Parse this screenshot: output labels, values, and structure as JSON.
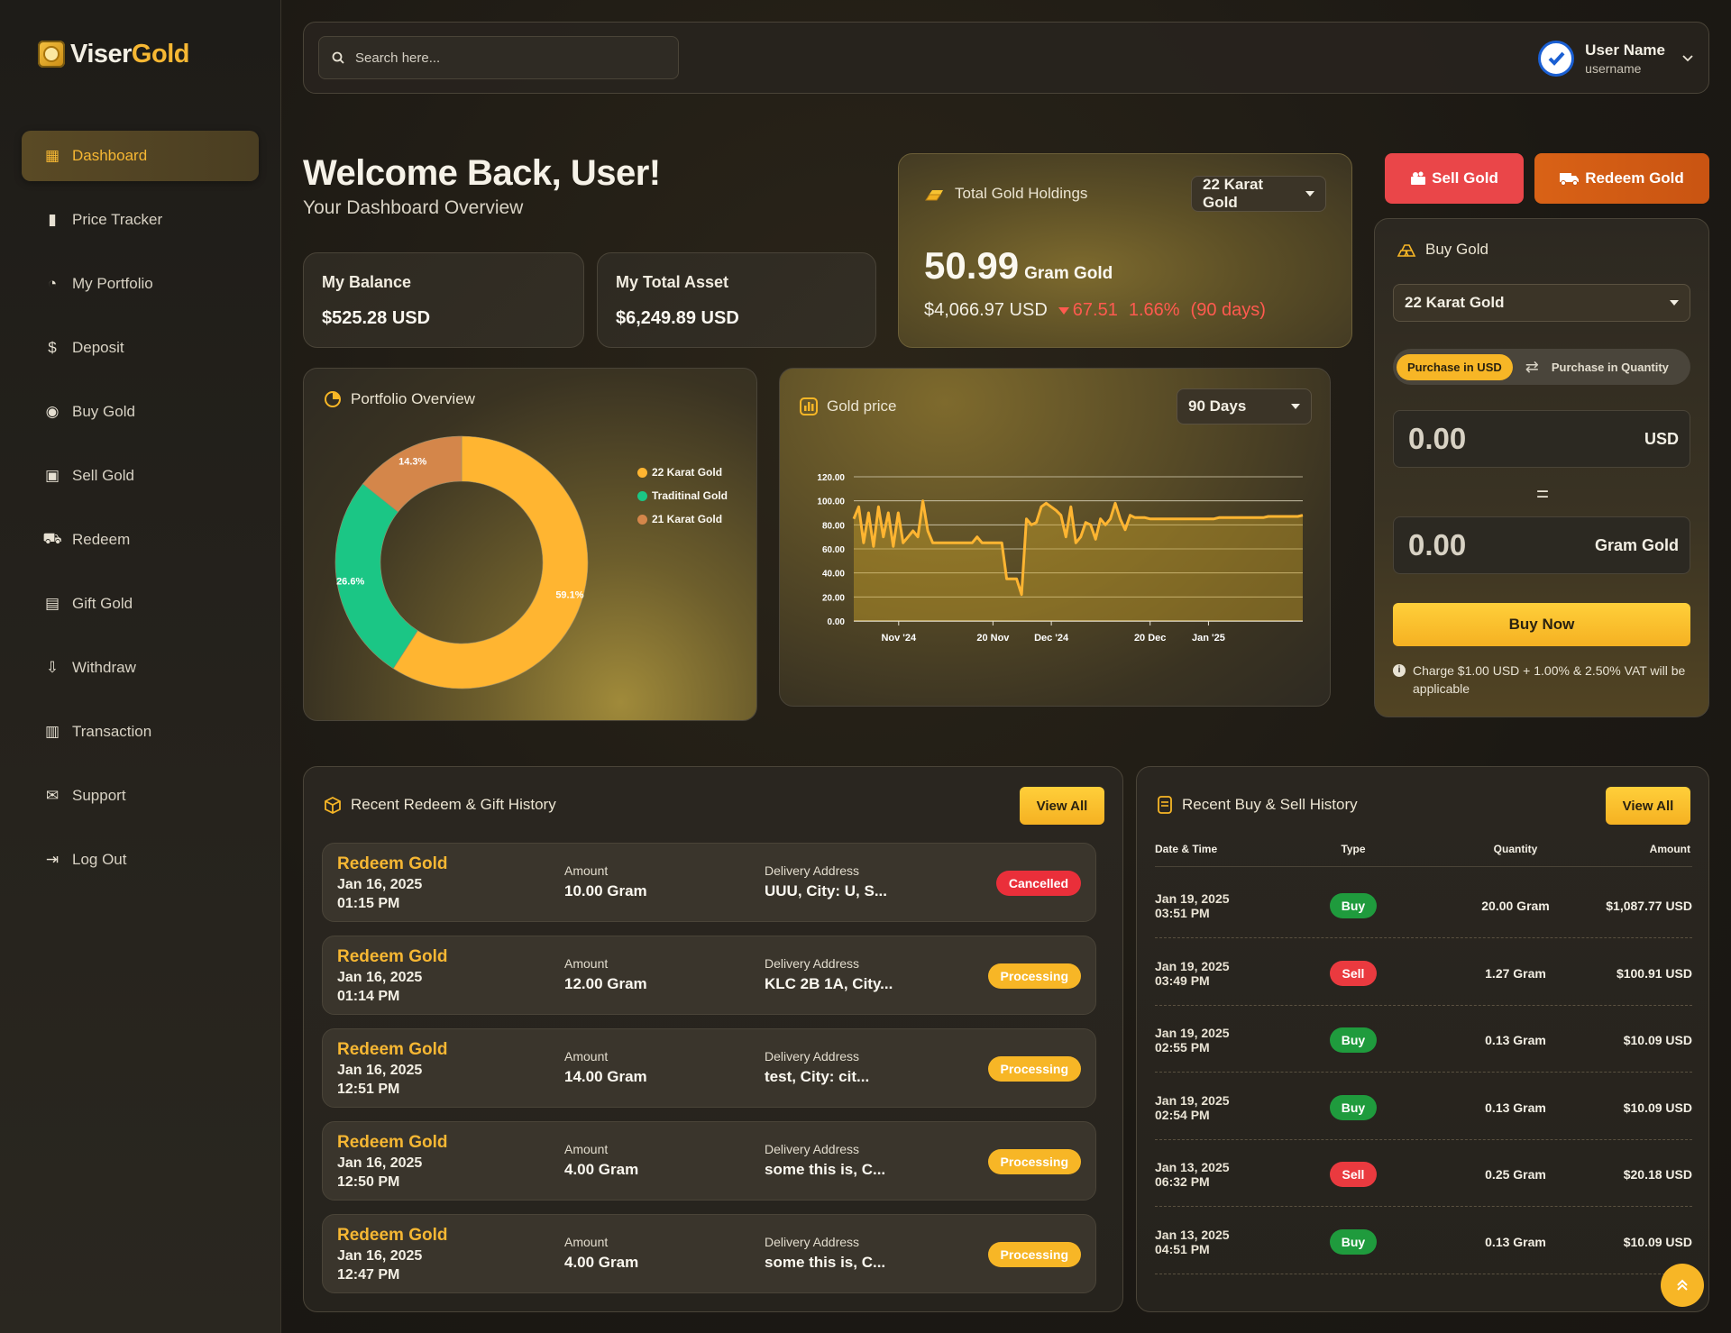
{
  "brand": {
    "part1": "Viser",
    "part2": "Gold"
  },
  "sidebar": {
    "items": [
      {
        "label": "Dashboard",
        "icon": "dashboard-icon",
        "active": true
      },
      {
        "label": "Price Tracker",
        "icon": "bar-chart-icon"
      },
      {
        "label": "My Portfolio",
        "icon": "pie-chart-icon"
      },
      {
        "label": "Deposit",
        "icon": "money-bag-icon"
      },
      {
        "label": "Buy Gold",
        "icon": "hand-coin-icon"
      },
      {
        "label": "Sell Gold",
        "icon": "sell-icon"
      },
      {
        "label": "Redeem",
        "icon": "truck-icon"
      },
      {
        "label": "Gift Gold",
        "icon": "gift-icon"
      },
      {
        "label": "Withdraw",
        "icon": "withdraw-icon"
      },
      {
        "label": "Transaction",
        "icon": "clipboard-icon"
      },
      {
        "label": "Support",
        "icon": "envelope-icon"
      },
      {
        "label": "Log Out",
        "icon": "logout-icon"
      }
    ]
  },
  "topbar": {
    "search_placeholder": "Search here...",
    "user_name": "User Name",
    "user_handle": "username"
  },
  "welcome": {
    "title": "Welcome Back, User!",
    "subtitle": "Your Dashboard Overview"
  },
  "stats": {
    "balance_label": "My Balance",
    "balance_value": "$525.28 USD",
    "asset_label": "My Total Asset",
    "asset_value": "$6,249.89 USD"
  },
  "holdings": {
    "title": "Total Gold Holdings",
    "karat": "22 Karat Gold",
    "amount": "50.99",
    "unit": "Gram Gold",
    "usd": "$4,066.97 USD",
    "change": "67.51",
    "change_pct": "1.66%",
    "period": "(90 days)"
  },
  "actions": {
    "sell": "Sell Gold",
    "redeem": "Redeem Gold"
  },
  "buy_gold": {
    "title": "Buy Gold",
    "karat": "22 Karat Gold",
    "opt_usd": "Purchase in USD",
    "opt_qty": "Purchase in Quantity",
    "usd_placeholder": "0.00",
    "usd_label": "USD",
    "gram_placeholder": "0.00",
    "gram_label": "Gram Gold",
    "equals": "=",
    "buy_now": "Buy Now",
    "note": "Charge $1.00 USD + 1.00% & 2.50% VAT will be applicable"
  },
  "portfolio": {
    "title": "Portfolio Overview",
    "legend": [
      "22 Karat Gold",
      "Traditinal Gold",
      "21 Karat Gold"
    ]
  },
  "gold_price": {
    "title": "Gold price",
    "range": "90 Days"
  },
  "colors": {
    "accent": "#f6b733",
    "green": "#1bc685",
    "copper": "#d4864a",
    "red": "#ea4649"
  },
  "chart_data": [
    {
      "type": "pie",
      "categories": [
        "22 Karat Gold",
        "Traditinal Gold",
        "21 Karat Gold"
      ],
      "values": [
        59.1,
        26.6,
        14.3
      ],
      "labels": [
        "59.1%",
        "26.6%",
        "14.3%"
      ],
      "colors": [
        "#ffb531",
        "#1bc685",
        "#d4864a"
      ],
      "legend": "right"
    },
    {
      "type": "area",
      "title": "",
      "ylim": [
        0,
        120
      ],
      "yticks": [
        "0.00",
        "20.00",
        "40.00",
        "60.00",
        "80.00",
        "100.00",
        "120.00"
      ],
      "xticks": [
        "Nov '24",
        "20 Nov",
        "Dec '24",
        "20 Dec",
        "Jan '25"
      ],
      "grid": true,
      "series": [
        {
          "values": [
            85,
            95,
            65,
            90,
            62,
            95,
            70,
            90,
            62,
            90,
            65,
            70,
            75,
            70,
            100,
            75,
            65,
            65,
            65,
            65,
            65,
            65,
            65,
            65,
            65,
            70,
            65,
            65,
            65,
            65,
            65,
            35,
            35,
            35,
            22,
            85,
            80,
            82,
            95,
            98,
            95,
            92,
            88,
            70,
            95,
            65,
            70,
            82,
            80,
            68,
            85,
            80,
            85,
            98,
            85,
            76,
            88,
            86,
            86,
            86,
            85,
            85,
            85,
            85,
            85,
            85,
            85,
            85,
            85,
            85,
            85,
            85,
            85,
            85,
            86,
            86,
            86,
            86,
            86,
            86,
            86,
            86,
            86,
            86,
            87,
            87,
            87,
            87,
            87,
            87,
            87,
            88
          ]
        }
      ]
    }
  ],
  "redeem_history": {
    "title": "Recent Redeem & Gift History",
    "view_all": "View All",
    "amount_label": "Amount",
    "address_label": "Delivery Address",
    "rows": [
      {
        "title": "Redeem Gold",
        "date": "Jan 16, 2025",
        "time": "01:15 PM",
        "amount": "10.00 Gram",
        "address": "UUU, City: U, S...",
        "status": "Cancelled",
        "status_kind": "cancel"
      },
      {
        "title": "Redeem Gold",
        "date": "Jan 16, 2025",
        "time": "01:14 PM",
        "amount": "12.00 Gram",
        "address": "KLC 2B 1A, City...",
        "status": "Processing",
        "status_kind": "proc"
      },
      {
        "title": "Redeem Gold",
        "date": "Jan 16, 2025",
        "time": "12:51 PM",
        "amount": "14.00 Gram",
        "address": "test, City: cit...",
        "status": "Processing",
        "status_kind": "proc"
      },
      {
        "title": "Redeem Gold",
        "date": "Jan 16, 2025",
        "time": "12:50 PM",
        "amount": "4.00 Gram",
        "address": "some this is, C...",
        "status": "Processing",
        "status_kind": "proc"
      },
      {
        "title": "Redeem Gold",
        "date": "Jan 16, 2025",
        "time": "12:47 PM",
        "amount": "4.00 Gram",
        "address": "some this is, C...",
        "status": "Processing",
        "status_kind": "proc"
      }
    ]
  },
  "trade_history": {
    "title": "Recent Buy & Sell History",
    "view_all": "View All",
    "headers": [
      "Date & Time",
      "Type",
      "Quantity",
      "Amount"
    ],
    "rows": [
      {
        "date": "Jan 19, 2025",
        "time": "03:51 PM",
        "type": "Buy",
        "qty": "20.00 Gram",
        "amount": "$1,087.77 USD"
      },
      {
        "date": "Jan 19, 2025",
        "time": "03:49 PM",
        "type": "Sell",
        "qty": "1.27 Gram",
        "amount": "$100.91 USD"
      },
      {
        "date": "Jan 19, 2025",
        "time": "02:55 PM",
        "type": "Buy",
        "qty": "0.13 Gram",
        "amount": "$10.09 USD"
      },
      {
        "date": "Jan 19, 2025",
        "time": "02:54 PM",
        "type": "Buy",
        "qty": "0.13 Gram",
        "amount": "$10.09 USD"
      },
      {
        "date": "Jan 13, 2025",
        "time": "06:32 PM",
        "type": "Sell",
        "qty": "0.25 Gram",
        "amount": "$20.18 USD"
      },
      {
        "date": "Jan 13, 2025",
        "time": "04:51 PM",
        "type": "Buy",
        "qty": "0.13 Gram",
        "amount": "$10.09 USD"
      }
    ]
  }
}
